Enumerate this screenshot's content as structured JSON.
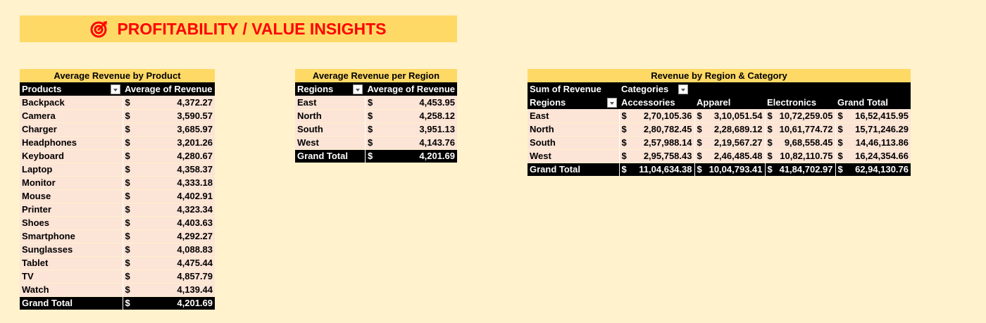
{
  "banner": {
    "title": "PROFITABILITY / VALUE INSIGHTS",
    "icon": "target-icon"
  },
  "colors": {
    "banner_bg": "#FFD966",
    "banner_text": "#FF0000",
    "page_bg": "#FFF2CC",
    "row_bg": "#FCE4D6"
  },
  "product_table": {
    "title": "Average Revenue by Product",
    "col1": "Products",
    "col2": "Average of Revenue",
    "currency": "$",
    "rows": [
      {
        "label": "Backpack",
        "value": "4,372.27"
      },
      {
        "label": "Camera",
        "value": "3,590.57"
      },
      {
        "label": "Charger",
        "value": "3,685.97"
      },
      {
        "label": "Headphones",
        "value": "3,201.26"
      },
      {
        "label": "Keyboard",
        "value": "4,280.67"
      },
      {
        "label": "Laptop",
        "value": "4,358.37"
      },
      {
        "label": "Monitor",
        "value": "4,333.18"
      },
      {
        "label": "Mouse",
        "value": "4,402.91"
      },
      {
        "label": "Printer",
        "value": "4,323.34"
      },
      {
        "label": "Shoes",
        "value": "4,403.63"
      },
      {
        "label": "Smartphone",
        "value": "4,292.27"
      },
      {
        "label": "Sunglasses",
        "value": "4,088.83"
      },
      {
        "label": "Tablet",
        "value": "4,475.44"
      },
      {
        "label": "TV",
        "value": "4,857.79"
      },
      {
        "label": "Watch",
        "value": "4,139.44"
      }
    ],
    "total_label": "Grand Total",
    "total_value": "4,201.69"
  },
  "region_table": {
    "title": "Average Revenue per Region",
    "col1": "Regions",
    "col2": "Average of Revenue",
    "currency": "$",
    "rows": [
      {
        "label": "East",
        "value": "4,453.95"
      },
      {
        "label": "North",
        "value": "4,258.12"
      },
      {
        "label": "South",
        "value": "3,951.13"
      },
      {
        "label": "West",
        "value": "4,143.76"
      }
    ],
    "total_label": "Grand Total",
    "total_value": "4,201.69"
  },
  "category_table": {
    "title": "Revenue by Region & Category",
    "corner": "Sum of Revenue",
    "col_field": "Categories",
    "row_field": "Regions",
    "currency": "$",
    "columns": [
      "Accessories",
      "Apparel",
      "Electronics",
      "Grand Total"
    ],
    "rows": [
      {
        "label": "East",
        "values": [
          "2,70,105.36",
          "3,10,051.54",
          "10,72,259.05",
          "16,52,415.95"
        ]
      },
      {
        "label": "North",
        "values": [
          "2,80,782.45",
          "2,28,689.12",
          "10,61,774.72",
          "15,71,246.29"
        ]
      },
      {
        "label": "South",
        "values": [
          "2,57,988.14",
          "2,19,567.27",
          "9,68,558.45",
          "14,46,113.86"
        ]
      },
      {
        "label": "West",
        "values": [
          "2,95,758.43",
          "2,46,485.48",
          "10,82,110.75",
          "16,24,354.66"
        ]
      }
    ],
    "total_label": "Grand Total",
    "total_values": [
      "11,04,634.38",
      "10,04,793.41",
      "41,84,702.97",
      "62,94,130.76"
    ]
  }
}
